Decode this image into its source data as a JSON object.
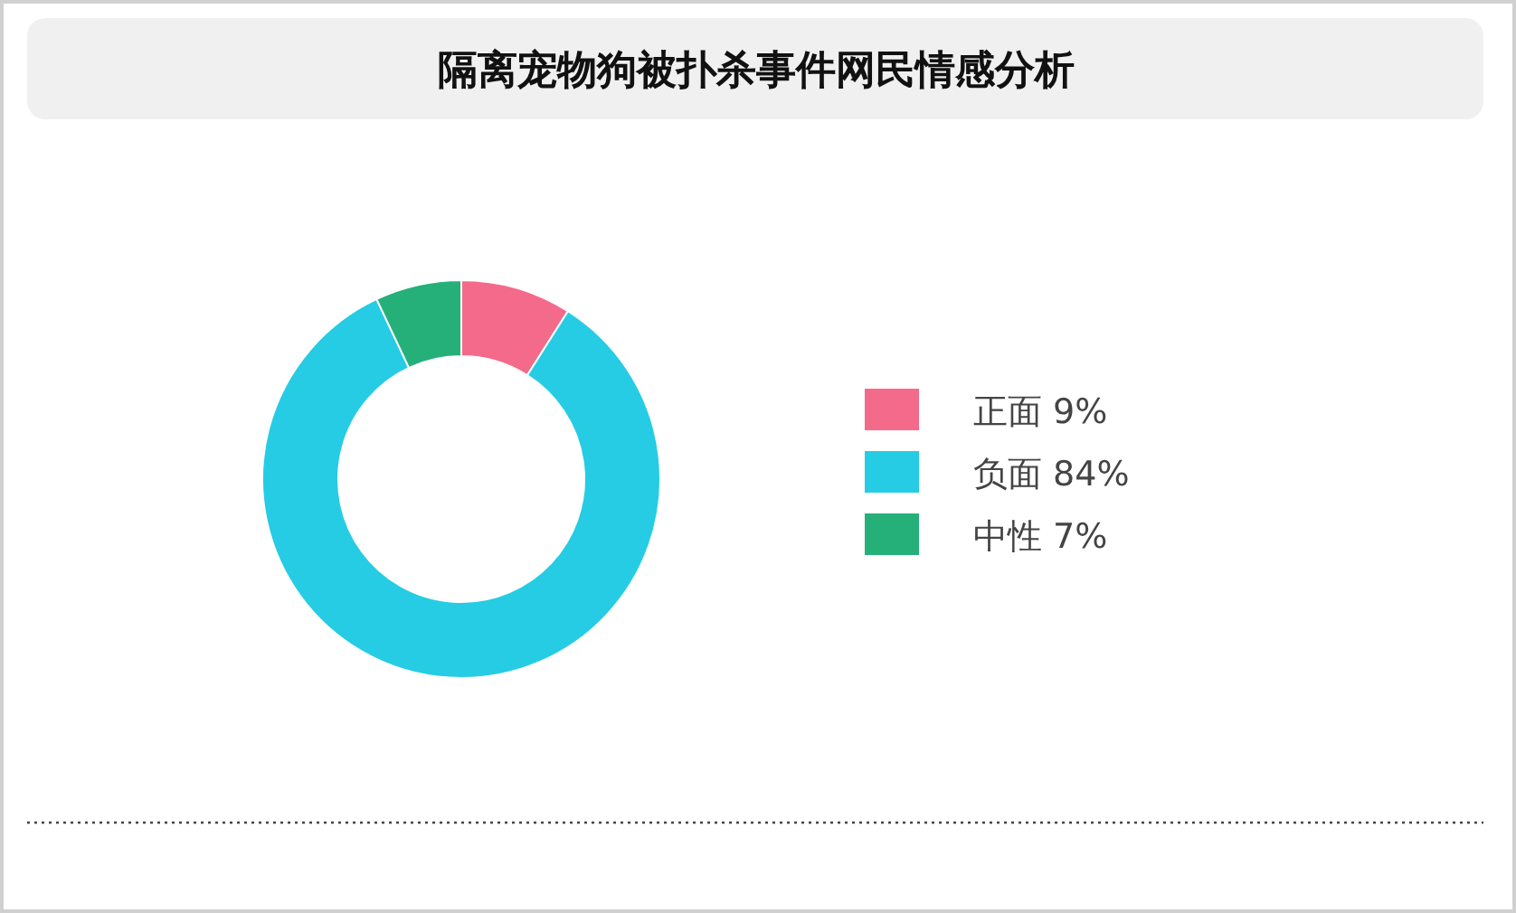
{
  "chart_data": {
    "type": "donut",
    "title": "隔离宠物狗被扑杀事件网民情感分析",
    "categories": [
      "正面 9%",
      "负面 84%",
      "中性 7%"
    ],
    "values": [
      9,
      84,
      7
    ],
    "colors": [
      "#f46a8a",
      "#25cce4",
      "#25b07a"
    ],
    "legend": "right"
  }
}
